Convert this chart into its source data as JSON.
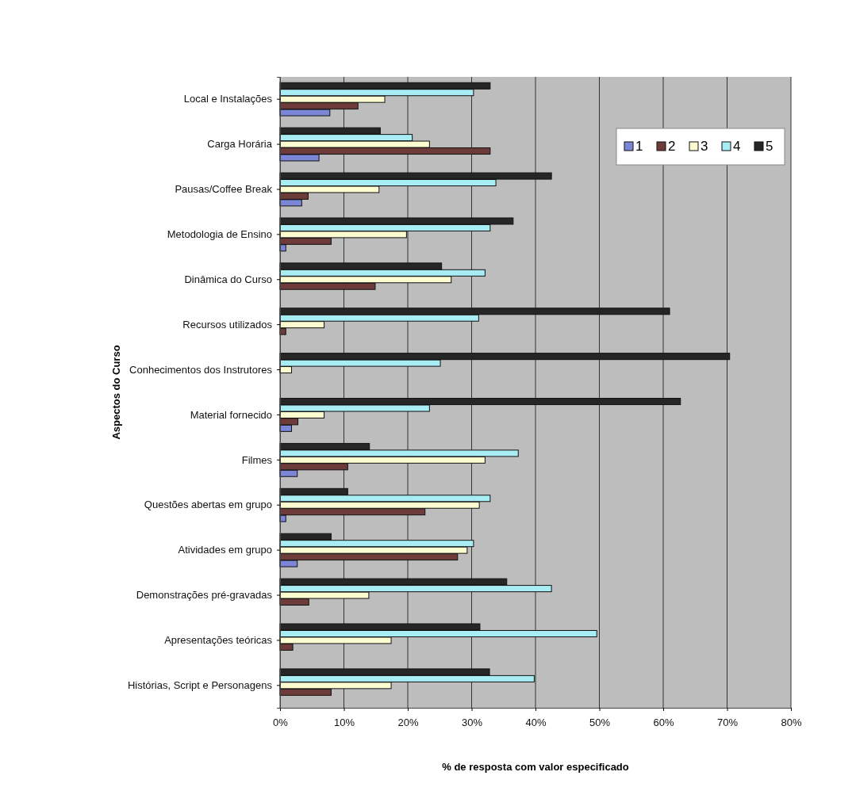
{
  "chart_data": {
    "type": "bar",
    "orientation": "horizontal",
    "xlabel": "% de resposta com valor especificado",
    "ylabel": "Aspectos do Curso",
    "categories": [
      "Local e Instalações",
      "Carga Horária",
      "Pausas/Coffee Break",
      "Metodologia de Ensino",
      "Dinâmica do Curso",
      "Recursos utilizados",
      "Conhecimentos dos Instrutores",
      "Material fornecido",
      "Filmes",
      "Questões abertas em grupo",
      "Atividades em grupo",
      "Demonstrações pré-gravadas",
      "Apresentações teóricas",
      "Histórias, Script e Personagens"
    ],
    "series": [
      {
        "name": "1",
        "color": "#7b86d6",
        "values": [
          7.8,
          6.1,
          3.4,
          0.9,
          0,
          0,
          0,
          1.8,
          2.7,
          0.9,
          2.7,
          0,
          0,
          0
        ]
      },
      {
        "name": "2",
        "color": "#6e3b3b",
        "values": [
          12.2,
          32.9,
          4.4,
          8.0,
          14.9,
          0.9,
          0,
          2.8,
          10.6,
          22.7,
          27.8,
          4.5,
          2.0,
          8.0
        ]
      },
      {
        "name": "3",
        "color": "#fdfbd0",
        "values": [
          16.4,
          23.4,
          15.5,
          19.8,
          26.8,
          6.9,
          1.8,
          6.9,
          32.1,
          31.2,
          29.3,
          13.9,
          17.4,
          17.4
        ]
      },
      {
        "name": "4",
        "color": "#a8ecf4",
        "values": [
          30.3,
          20.7,
          33.8,
          32.9,
          32.1,
          31.1,
          25.1,
          23.4,
          37.3,
          32.9,
          30.3,
          42.5,
          49.6,
          39.8
        ]
      },
      {
        "name": "5",
        "color": "#262626",
        "values": [
          32.9,
          15.7,
          42.5,
          36.5,
          25.3,
          61.0,
          70.4,
          62.7,
          14.0,
          10.6,
          8.0,
          35.5,
          31.3,
          32.8
        ]
      }
    ],
    "xlim": [
      0,
      80
    ],
    "xticks": [
      {
        "value": 0,
        "label": "0%"
      },
      {
        "value": 10,
        "label": "10%"
      },
      {
        "value": 20,
        "label": "20%"
      },
      {
        "value": 30,
        "label": "30%"
      },
      {
        "value": 40,
        "label": "40%"
      },
      {
        "value": 50,
        "label": "50%"
      },
      {
        "value": 60,
        "label": "60%"
      },
      {
        "value": 70,
        "label": "70%"
      },
      {
        "value": 80,
        "label": "80%"
      }
    ],
    "grid": "x",
    "legend": "top right"
  }
}
